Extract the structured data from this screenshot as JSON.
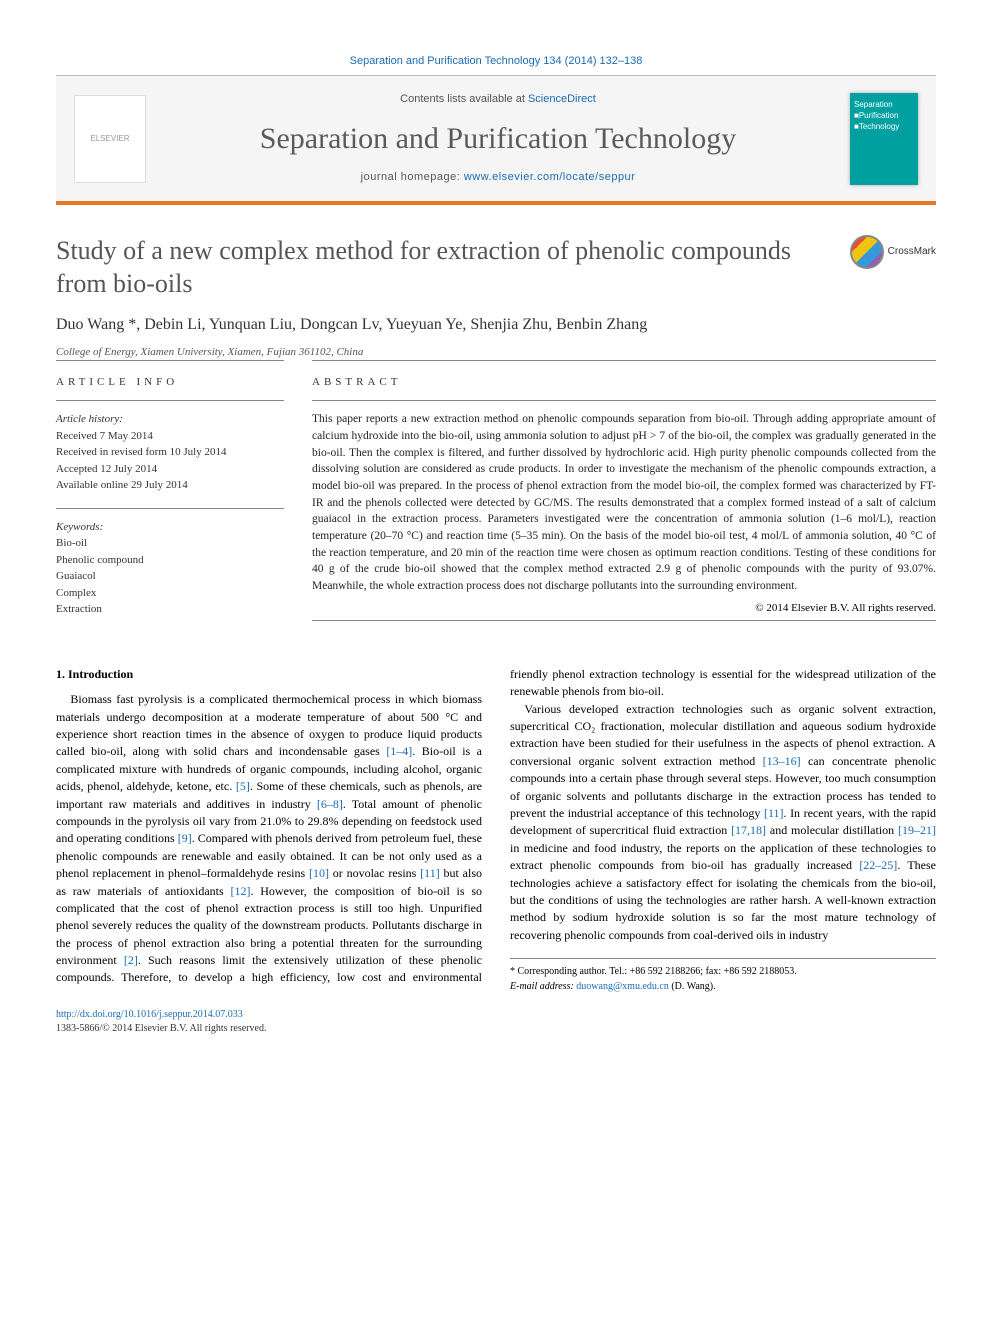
{
  "header": {
    "citation": "Separation and Purification Technology 134 (2014) 132–138",
    "contents_available": "Contents lists available at ",
    "sciencedirect": "ScienceDirect",
    "journal_title": "Separation and Purification Technology",
    "homepage_prefix": "journal homepage: ",
    "homepage_url": "www.elsevier.com/locate/seppur",
    "cover_line1": "Separation",
    "cover_line2": "■Purification",
    "cover_line3": "■Technology",
    "elsevier_text": "ELSEVIER"
  },
  "crossmark_label": "CrossMark",
  "title": "Study of a new complex method for extraction of phenolic compounds from bio-oils",
  "authors_line": "Duo Wang *, Debin Li, Yunquan Liu, Dongcan Lv, Yueyuan Ye, Shenjia Zhu, Benbin Zhang",
  "affiliation": "College of Energy, Xiamen University, Xiamen, Fujian 361102, China",
  "info": {
    "heading": "ARTICLE INFO",
    "history_label": "Article history:",
    "received": "Received 7 May 2014",
    "revised": "Received in revised form 10 July 2014",
    "accepted": "Accepted 12 July 2014",
    "online": "Available online 29 July 2014",
    "keywords_label": "Keywords:",
    "kw1": "Bio-oil",
    "kw2": "Phenolic compound",
    "kw3": "Guaiacol",
    "kw4": "Complex",
    "kw5": "Extraction"
  },
  "abstract": {
    "heading": "ABSTRACT",
    "text": "This paper reports a new extraction method on phenolic compounds separation from bio-oil. Through adding appropriate amount of calcium hydroxide into the bio-oil, using ammonia solution to adjust pH > 7 of the bio-oil, the complex was gradually generated in the bio-oil. Then the complex is filtered, and further dissolved by hydrochloric acid. High purity phenolic compounds collected from the dissolving solution are considered as crude products. In order to investigate the mechanism of the phenolic compounds extraction, a model bio-oil was prepared. In the process of phenol extraction from the model bio-oil, the complex formed was characterized by FT-IR and the phenols collected were detected by GC/MS. The results demonstrated that a complex formed instead of a salt of calcium guaiacol in the extraction process. Parameters investigated were the concentration of ammonia solution (1–6 mol/L), reaction temperature (20–70 °C) and reaction time (5–35 min). On the basis of the model bio-oil test, 4 mol/L of ammonia solution, 40 °C of the reaction temperature, and 20 min of the reaction time were chosen as optimum reaction conditions. Testing of these conditions for 40 g of the crude bio-oil showed that the complex method extracted 2.9 g of phenolic compounds with the purity of 93.07%. Meanwhile, the whole extraction process does not discharge pollutants into the surrounding environment.",
    "copyright": "© 2014 Elsevier B.V. All rights reserved."
  },
  "body": {
    "h1": "1. Introduction",
    "p1a": "Biomass fast pyrolysis is a complicated thermochemical process in which biomass materials undergo decomposition at a moderate temperature of about 500 °C and experience short reaction times in the absence of oxygen to produce liquid products called bio-oil, along with solid chars and incondensable gases ",
    "r1": "[1–4]",
    "p1b": ". Bio-oil is a complicated mixture with hundreds of organic compounds, including alcohol, organic acids, phenol, aldehyde, ketone, etc. ",
    "r2": "[5]",
    "p1c": ". Some of these chemicals, such as phenols, are important raw materials and additives in industry ",
    "r3": "[6–8]",
    "p1d": ". Total amount of phenolic compounds in the pyrolysis oil vary from 21.0% to 29.8% depending on feedstock used and operating conditions ",
    "r4": "[9]",
    "p1e": ". Compared with phenols derived from petroleum fuel, these phenolic compounds are renewable and easily obtained. It can be not only used as a phenol replacement in phenol–formaldehyde resins ",
    "r5": "[10]",
    "p1f": " or novolac resins ",
    "r6": "[11]",
    "p1g": " but also as raw materials of antioxidants ",
    "r7": "[12]",
    "p1h": ". However, the composition of bio-oil is so complicated that the cost of phenol extraction process is still too high. Unpurified phenol severely reduces the quality of the downstream products. Pollutants discharge in the process of phenol extraction also bring a potential threaten for the surrounding environment ",
    "r8": "[2]",
    "p1i": ". Such reasons limit the extensively utilization of these phenolic compounds. Therefore, to develop a high efficiency, low cost and environmental friendly phenol extraction technology is essential for the widespread utilization of the renewable phenols from bio-oil.",
    "p2a": "Various developed extraction technologies such as organic solvent extraction, supercritical CO₂ fractionation, molecular distillation and aqueous sodium hydroxide extraction have been studied for their usefulness in the aspects of phenol extraction. A conversional organic solvent extraction method ",
    "r9": "[13–16]",
    "p2b": " can concentrate phenolic compounds into a certain phase through several steps. However, too much consumption of organic solvents and pollutants discharge in the extraction process has tended to prevent the industrial acceptance of this technology ",
    "r10": "[11]",
    "p2c": ". In recent years, with the rapid development of supercritical fluid extraction ",
    "r11": "[17,18]",
    "p2d": " and molecular distillation ",
    "r12": "[19–21]",
    "p2e": " in medicine and food industry, the reports on the application of these technologies to extract phenolic compounds from bio-oil has gradually increased ",
    "r13": "[22–25]",
    "p2f": ". These technologies achieve a satisfactory effect for isolating the chemicals from the bio-oil, but the conditions of using the technologies are rather harsh. A well-known extraction method by sodium hydroxide solution is so far the most mature technology of recovering phenolic compounds from coal-derived oils in industry"
  },
  "footnote": {
    "corresponding": "* Corresponding author. Tel.: +86 592 2188266; fax: +86 592 2188053.",
    "email_label": "E-mail address: ",
    "email": "duowang@xmu.edu.cn",
    "email_suffix": " (D. Wang)."
  },
  "bottom": {
    "doi": "http://dx.doi.org/10.1016/j.seppur.2014.07.033",
    "issn_line": "1383-5866/© 2014 Elsevier B.V. All rights reserved."
  },
  "colors": {
    "link": "#1a6bb0",
    "accent": "#e87722",
    "teal": "#00a0a0"
  }
}
